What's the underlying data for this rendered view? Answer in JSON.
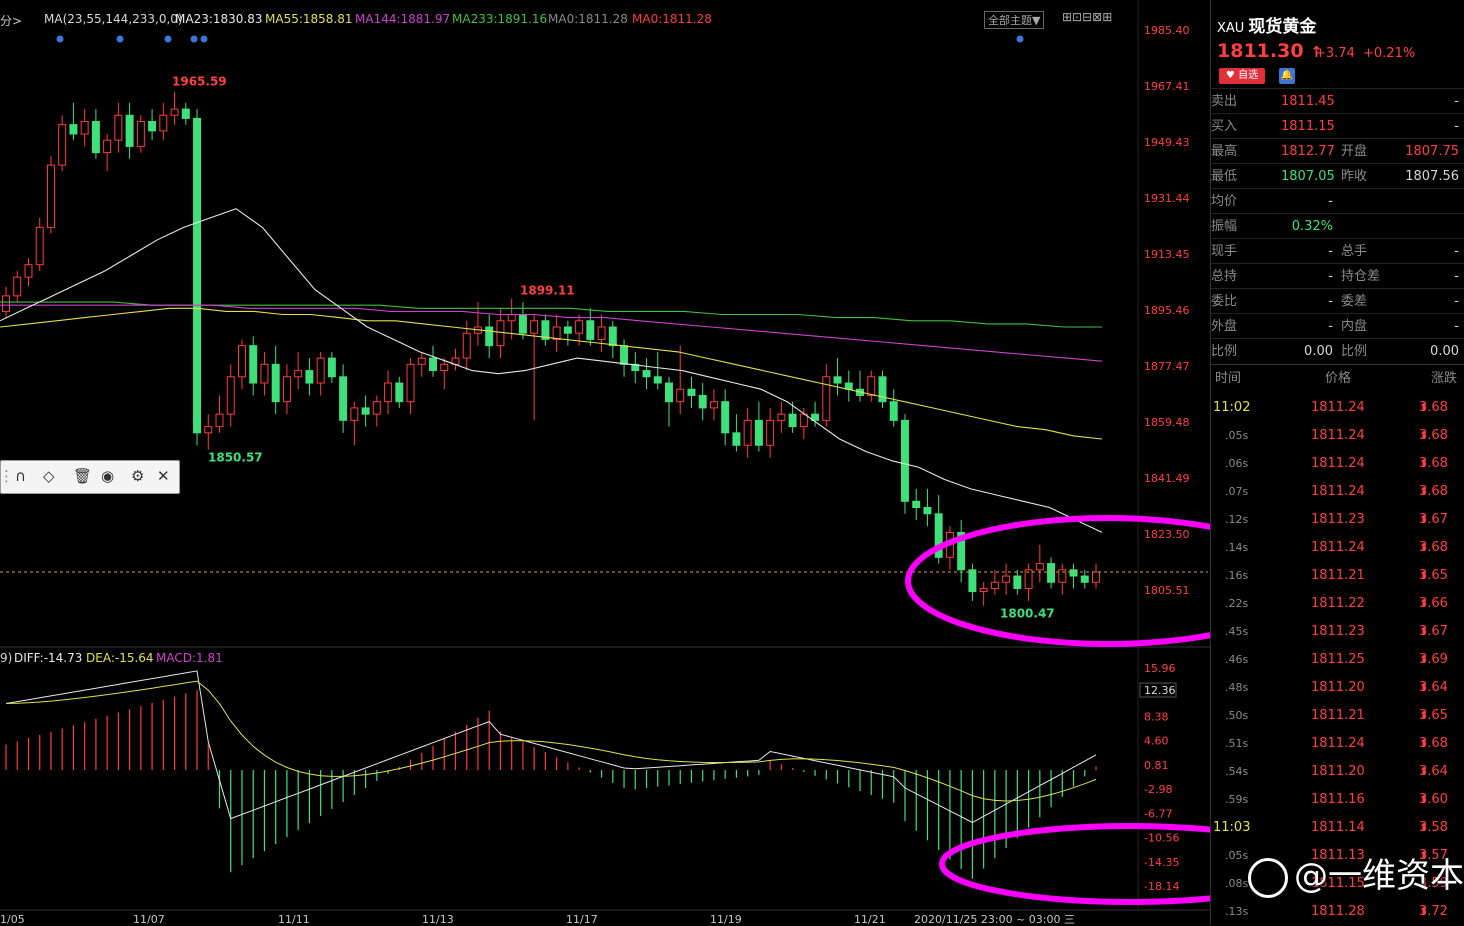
{
  "topbar": {
    "period_label": "分>",
    "ma_header": "MA(23,55,144,233,0,0)",
    "ma23": "MA23:1830.83",
    "ma55": "MA55:1858.81",
    "ma144": "MA144:1881.97",
    "ma233": "MA233:1891.16",
    "ma0a": "MA0:1811.28",
    "ma0b": "MA0:1811.28",
    "theme_select": "全部主题▼"
  },
  "price_axis": [
    "1985.40",
    "1967.41",
    "1949.43",
    "1931.44",
    "1913.45",
    "1895.46",
    "1877.47",
    "1859.48",
    "1841.49",
    "1823.50",
    "1805.51"
  ],
  "annotations": {
    "high": "1965.59",
    "mid_high": "1899.11",
    "low1": "1850.57",
    "low2": "1800.47"
  },
  "macd": {
    "header_prefix": "9)",
    "diff": "DIFF:-14.73",
    "dea": "DEA:-15.64",
    "macd": "MACD:1.81",
    "axis": [
      "15.96",
      "12.17",
      "8.38",
      "4.60",
      "0.81",
      "-2.98",
      "-6.77",
      "-10.56",
      "-14.35",
      "-18.14"
    ],
    "current": "12.36"
  },
  "date_axis": [
    "1/05",
    "11/07",
    "11/11",
    "11/13",
    "11/17",
    "11/19",
    "11/21",
    "2020/11/25 23:00 ~ 03:00 三"
  ],
  "colors": {
    "up": "#ff3b3b",
    "down": "#3ee07a",
    "ma23": "#e8e8e8",
    "ma55": "#e0e050",
    "ma144": "#d040d0",
    "ma233": "#40c040",
    "circle": "#ff00ff"
  },
  "chart_data": {
    "type": "candlestick",
    "ylim": [
      1795,
      1990
    ],
    "candles": [
      [
        1895,
        1903,
        1893,
        1900
      ],
      [
        1900,
        1908,
        1898,
        1906
      ],
      [
        1906,
        1912,
        1903,
        1910
      ],
      [
        1910,
        1925,
        1908,
        1922
      ],
      [
        1922,
        1945,
        1920,
        1942
      ],
      [
        1942,
        1958,
        1940,
        1955
      ],
      [
        1955,
        1962,
        1950,
        1952
      ],
      [
        1952,
        1960,
        1948,
        1956
      ],
      [
        1956,
        1960,
        1944,
        1946
      ],
      [
        1946,
        1952,
        1940,
        1950
      ],
      [
        1950,
        1962,
        1946,
        1958
      ],
      [
        1958,
        1962,
        1944,
        1948
      ],
      [
        1948,
        1958,
        1946,
        1956
      ],
      [
        1956,
        1960,
        1950,
        1953
      ],
      [
        1953,
        1962,
        1950,
        1958
      ],
      [
        1958,
        1965.59,
        1955,
        1960
      ],
      [
        1960,
        1962,
        1955,
        1957
      ],
      [
        1957,
        1960,
        1852,
        1856
      ],
      [
        1856,
        1862,
        1850.57,
        1858
      ],
      [
        1858,
        1868,
        1856,
        1862
      ],
      [
        1862,
        1878,
        1858,
        1874
      ],
      [
        1874,
        1886,
        1870,
        1884
      ],
      [
        1884,
        1887,
        1868,
        1872
      ],
      [
        1872,
        1882,
        1868,
        1878
      ],
      [
        1878,
        1884,
        1862,
        1866
      ],
      [
        1866,
        1878,
        1862,
        1874
      ],
      [
        1874,
        1882,
        1870,
        1876
      ],
      [
        1876,
        1880,
        1868,
        1872
      ],
      [
        1872,
        1882,
        1868,
        1880
      ],
      [
        1880,
        1882,
        1872,
        1874
      ],
      [
        1874,
        1878,
        1856,
        1860
      ],
      [
        1860,
        1866,
        1852,
        1864
      ],
      [
        1864,
        1868,
        1858,
        1862
      ],
      [
        1862,
        1868,
        1858,
        1866
      ],
      [
        1866,
        1876,
        1862,
        1872
      ],
      [
        1872,
        1874,
        1864,
        1866
      ],
      [
        1866,
        1880,
        1862,
        1878
      ],
      [
        1878,
        1882,
        1874,
        1880
      ],
      [
        1880,
        1884,
        1874,
        1876
      ],
      [
        1876,
        1880,
        1870,
        1878
      ],
      [
        1878,
        1883,
        1876,
        1880
      ],
      [
        1880,
        1892,
        1876,
        1888
      ],
      [
        1888,
        1898,
        1884,
        1890
      ],
      [
        1890,
        1894,
        1880,
        1884
      ],
      [
        1884,
        1896,
        1880,
        1892
      ],
      [
        1892,
        1899.11,
        1886,
        1894
      ],
      [
        1894,
        1898,
        1886,
        1888
      ],
      [
        1888,
        1894,
        1860,
        1892
      ],
      [
        1892,
        1894,
        1884,
        1886
      ],
      [
        1886,
        1894,
        1882,
        1890
      ],
      [
        1890,
        1892,
        1884,
        1888
      ],
      [
        1888,
        1894,
        1884,
        1892
      ],
      [
        1892,
        1896,
        1884,
        1886
      ],
      [
        1886,
        1894,
        1882,
        1890
      ],
      [
        1890,
        1892,
        1880,
        1884
      ],
      [
        1884,
        1886,
        1874,
        1878
      ],
      [
        1878,
        1882,
        1872,
        1876
      ],
      [
        1876,
        1880,
        1870,
        1874
      ],
      [
        1874,
        1882,
        1870,
        1872
      ],
      [
        1872,
        1874,
        1858,
        1866
      ],
      [
        1866,
        1884,
        1862,
        1870
      ],
      [
        1870,
        1874,
        1864,
        1868
      ],
      [
        1868,
        1872,
        1860,
        1864
      ],
      [
        1864,
        1870,
        1860,
        1866
      ],
      [
        1866,
        1870,
        1852,
        1856
      ],
      [
        1856,
        1862,
        1850,
        1852
      ],
      [
        1852,
        1864,
        1848,
        1860
      ],
      [
        1860,
        1866,
        1850,
        1852
      ],
      [
        1852,
        1864,
        1848,
        1860
      ],
      [
        1860,
        1866,
        1856,
        1862
      ],
      [
        1862,
        1866,
        1856,
        1858
      ],
      [
        1858,
        1864,
        1854,
        1862
      ],
      [
        1862,
        1866,
        1858,
        1860
      ],
      [
        1860,
        1878,
        1858,
        1874
      ],
      [
        1874,
        1880,
        1868,
        1872
      ],
      [
        1872,
        1876,
        1866,
        1870
      ],
      [
        1870,
        1876,
        1866,
        1868
      ],
      [
        1868,
        1876,
        1866,
        1874
      ],
      [
        1874,
        1876,
        1864,
        1866
      ],
      [
        1866,
        1870,
        1858,
        1860
      ],
      [
        1860,
        1862,
        1830,
        1834
      ],
      [
        1834,
        1838,
        1828,
        1832
      ],
      [
        1832,
        1838,
        1826,
        1830
      ],
      [
        1830,
        1836,
        1814,
        1816
      ],
      [
        1816,
        1826,
        1812,
        1824
      ],
      [
        1824,
        1828,
        1808,
        1812
      ],
      [
        1812,
        1814,
        1802,
        1805
      ],
      [
        1805,
        1808,
        1800.47,
        1806
      ],
      [
        1806,
        1812,
        1804,
        1808
      ],
      [
        1808,
        1814,
        1804,
        1810
      ],
      [
        1810,
        1812,
        1804,
        1806
      ],
      [
        1806,
        1814,
        1802,
        1812
      ],
      [
        1812,
        1820,
        1808,
        1814
      ],
      [
        1814,
        1816,
        1806,
        1808
      ],
      [
        1808,
        1814,
        1804,
        1812
      ],
      [
        1812,
        1814,
        1806,
        1810
      ],
      [
        1810,
        1812,
        1806,
        1808
      ],
      [
        1808,
        1814,
        1806,
        1811.3
      ]
    ],
    "ma23": [
      1892,
      1896,
      1900,
      1904,
      1908,
      1913,
      1918,
      1922,
      1925,
      1928,
      1922,
      1912,
      1902,
      1896,
      1890,
      1886,
      1882,
      1879,
      1876,
      1875,
      1876,
      1878,
      1880,
      1879,
      1878,
      1877,
      1876,
      1874,
      1872,
      1870,
      1866,
      1860,
      1854,
      1850,
      1847,
      1845,
      1841,
      1838,
      1836,
      1834,
      1832,
      1828,
      1824
    ],
    "ma55": [
      1890,
      1891,
      1892,
      1893,
      1894,
      1895,
      1896,
      1896,
      1895,
      1895,
      1894,
      1894,
      1893,
      1892,
      1892,
      1891,
      1890,
      1889,
      1888,
      1887,
      1886,
      1885,
      1884,
      1883,
      1882,
      1880,
      1878,
      1876,
      1874,
      1872,
      1870,
      1868,
      1866,
      1864,
      1862,
      1860,
      1858,
      1857,
      1855,
      1854
    ],
    "ma144": [
      1897,
      1897,
      1897,
      1897,
      1897,
      1897,
      1897,
      1896,
      1896,
      1896,
      1896,
      1895,
      1895,
      1895,
      1894,
      1894,
      1893,
      1893,
      1892,
      1891,
      1890,
      1889,
      1888,
      1887,
      1886,
      1885,
      1884,
      1883,
      1882,
      1881,
      1880,
      1879
    ],
    "ma233": [
      1898,
      1898,
      1898,
      1898,
      1897,
      1897,
      1897,
      1897,
      1897,
      1897,
      1897,
      1896,
      1896,
      1896,
      1896,
      1896,
      1895,
      1895,
      1895,
      1894,
      1894,
      1894,
      1893,
      1893,
      1892,
      1892,
      1891,
      1891,
      1890,
      1890
    ]
  },
  "panel": {
    "code": "XAU",
    "name": "现货黄金",
    "price": "1811.30",
    "arrow": "↑",
    "change": "+3.74",
    "change_pct": "+0.21%",
    "fav_label": "自选",
    "rows": [
      {
        "l1": "卖出",
        "v1": "1811.45",
        "l2": "",
        "v2": "-"
      },
      {
        "l1": "买入",
        "v1": "1811.15",
        "l2": "",
        "v2": "-"
      },
      {
        "l1": "最高",
        "v1": "1812.77",
        "l2": "开盘",
        "v2": "1807.75"
      },
      {
        "l1": "最低",
        "v1": "1807.05",
        "l2": "昨收",
        "v2": "1807.56"
      },
      {
        "l1": "均价",
        "v1": "-",
        "l2": "",
        "v2": ""
      },
      {
        "l1": "振幅",
        "v1": "0.32%",
        "l2": "",
        "v2": ""
      },
      {
        "l1": "现手",
        "v1": "-",
        "l2": "总手",
        "v2": "-"
      },
      {
        "l1": "总持",
        "v1": "-",
        "l2": "持仓差",
        "v2": "-"
      },
      {
        "l1": "委比",
        "v1": "-",
        "l2": "委差",
        "v2": "-"
      },
      {
        "l1": "外盘",
        "v1": "-",
        "l2": "内盘",
        "v2": "-"
      },
      {
        "l1": "比例",
        "v1": "0.00",
        "l2": "比例",
        "v2": "0.00"
      }
    ],
    "trades_header": {
      "time": "时间",
      "price": "价格",
      "change": "涨跌"
    },
    "trades": [
      {
        "t": "11:02",
        "p": "1811.24",
        "c": "3.68"
      },
      {
        "t": ".05s",
        "p": "1811.24",
        "c": "3.68"
      },
      {
        "t": ".06s",
        "p": "1811.24",
        "c": "3.68"
      },
      {
        "t": ".07s",
        "p": "1811.24",
        "c": "3.68"
      },
      {
        "t": ".12s",
        "p": "1811.23",
        "c": "3.67"
      },
      {
        "t": ".14s",
        "p": "1811.24",
        "c": "3.68"
      },
      {
        "t": ".16s",
        "p": "1811.21",
        "c": "3.65"
      },
      {
        "t": ".22s",
        "p": "1811.22",
        "c": "3.66"
      },
      {
        "t": ".45s",
        "p": "1811.23",
        "c": "3.67"
      },
      {
        "t": ".46s",
        "p": "1811.25",
        "c": "3.69"
      },
      {
        "t": ".48s",
        "p": "1811.20",
        "c": "3.64"
      },
      {
        "t": ".50s",
        "p": "1811.21",
        "c": "3.65"
      },
      {
        "t": ".51s",
        "p": "1811.24",
        "c": "3.68"
      },
      {
        "t": ".54s",
        "p": "1811.20",
        "c": "3.64"
      },
      {
        "t": ".59s",
        "p": "1811.16",
        "c": "3.60"
      },
      {
        "t": "11:03",
        "p": "1811.14",
        "c": "3.58"
      },
      {
        "t": ".05s",
        "p": "1811.13",
        "c": "3.57"
      },
      {
        "t": ".08s",
        "p": "1811.15",
        "c": "3.59"
      },
      {
        "t": ".13s",
        "p": "1811.28",
        "c": "3.72"
      }
    ]
  },
  "watermark": "@一维资本"
}
